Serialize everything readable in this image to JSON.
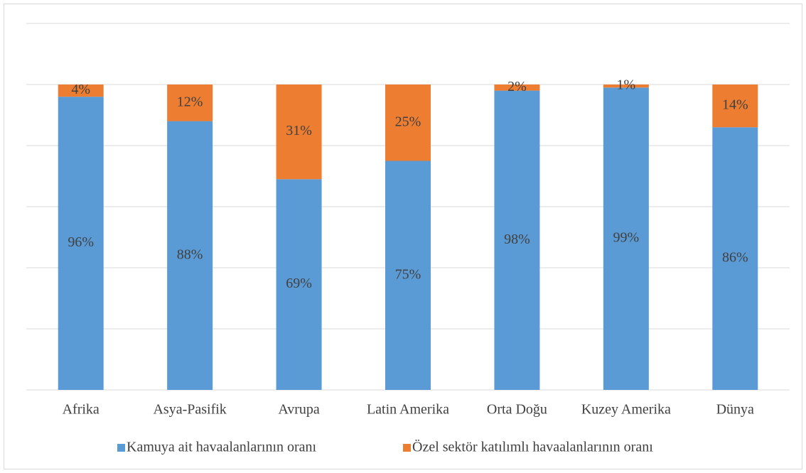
{
  "chart_data": {
    "type": "bar",
    "stacked": true,
    "categories": [
      "Afrika",
      "Asya-Pasifik",
      "Avrupa",
      "Latin Amerika",
      "Orta Doğu",
      "Kuzey Amerika",
      "Dünya"
    ],
    "series": [
      {
        "name": "Kamuya ait havaalanlarının oranı",
        "color": "#5b9bd5",
        "values": [
          96,
          88,
          69,
          75,
          98,
          99,
          86
        ],
        "value_labels": [
          "96%",
          "88%",
          "69%",
          "75%",
          "98%",
          "99%",
          "86%"
        ]
      },
      {
        "name": "Özel sektör katılımlı havaalanlarının oranı",
        "color": "#ed7d31",
        "values": [
          4,
          12,
          31,
          25,
          2,
          1,
          14
        ],
        "value_labels": [
          "4%",
          "12%",
          "31%",
          "25%",
          "2%",
          "1%",
          "14%"
        ]
      }
    ],
    "ylim": [
      0,
      120
    ],
    "yticks": [
      0,
      20,
      40,
      60,
      80,
      100,
      120
    ],
    "grid": true,
    "legend": "bottom"
  }
}
